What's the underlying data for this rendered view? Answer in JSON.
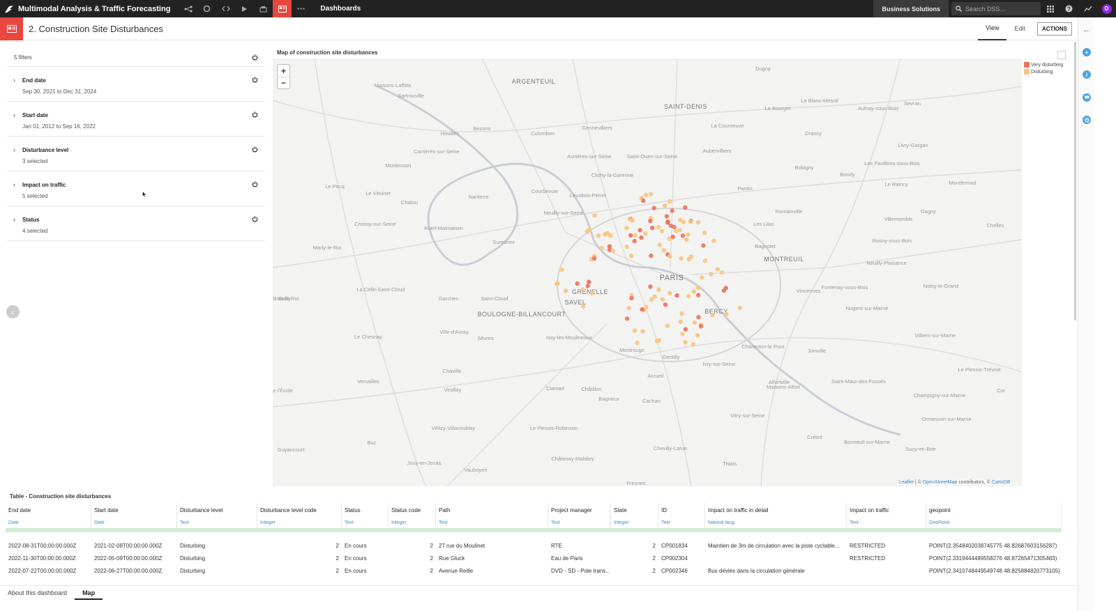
{
  "topbar": {
    "project": "Multimodal Analysis & Traffic Forecasting",
    "crumb": "Dashboards",
    "business": "Business Solutions",
    "search_placeholder": "Search DSS...",
    "avatar": "D"
  },
  "header": {
    "title": "2. Construction Site Disturbances",
    "tabs": [
      "View",
      "Edit"
    ],
    "actions": "ACTIONS"
  },
  "filters": {
    "count": "5 filters",
    "items": [
      {
        "name": "End date",
        "value": "Sep 30, 2021 to Dec 31, 2024"
      },
      {
        "name": "Start date",
        "value": "Jan 01, 2012 to Sep 16, 2022"
      },
      {
        "name": "Disturbance level",
        "value": "3 selected"
      },
      {
        "name": "Impact on traffic",
        "value": "5 selected"
      },
      {
        "name": "Status",
        "value": "4 selected"
      }
    ]
  },
  "map": {
    "title": "Map of construction site disturbances",
    "legend": [
      {
        "label": "Very disturbing",
        "color": "#e8735f"
      },
      {
        "label": "Disturbing",
        "color": "#f7c57f"
      }
    ],
    "attribution": {
      "leaflet": "Leaflet",
      "osm": "OpenStreetMap",
      "contrib": " contributors, © ",
      "carto": "CartoDB",
      "sep": " | © "
    },
    "labels": [
      "Dugny",
      "ARGENTEUIL",
      "Maisons-Laffitte",
      "Sartrouville",
      "SAINT-DENIS",
      "Le Bourget",
      "Le Blanc-Mesnil",
      "Aulnay-sous-Bois",
      "Sevran",
      "La Courneuve",
      "Drancy",
      "Gennevilliers",
      "Houilles",
      "Bezons",
      "Colombes",
      "Carrières-sur-Seine",
      "Asnières-sur-Seine",
      "Saint-Ouen-sur-Seine",
      "Aubervilliers",
      "Bobigny",
      "Livry-Gargan",
      "Les Pavillons-sous-Bois",
      "Bondy",
      "Montesson",
      "Clichy-la-Garenne",
      "Pantin",
      "Le Raincy",
      "Montfermeil",
      "Le Pecq",
      "Le Vésinet",
      "Chatou",
      "Nanterre",
      "Courbevoie",
      "Levallois-Perret",
      "Neuilly-sur-Seine",
      "Romainville",
      "Villemomble",
      "Gagny",
      "Les Lilas",
      "Chelles",
      "Croissy-sur-Seine",
      "Rueil-Malmaison",
      "Suresnes",
      "Bagnolet",
      "Rosny-sous-Bois",
      "Marly-le-Roi",
      "MONTREUIL",
      "Neuilly-Plaisance",
      "PARIS",
      "La Celle-Saint-Cloud",
      "Fontenay-sous-Bois",
      "Noisy-le-Grand",
      "Vincennes",
      "Bailly",
      "Garches",
      "Saint-Cloud",
      "BOULOGNE-BILLANCOURT",
      "Nogent-sur-Marne",
      "Le Chesnay",
      "Ville-d'Avray",
      "Sèvres",
      "Issy-les-Moulineaux",
      "Charenton-le-Pont",
      "Joinville",
      "Villiers-sur-Marne",
      "Montrouge",
      "Gentilly",
      "Ivry-sur-Seine",
      "Le Plessis-Trévise",
      "Versailles",
      "Chaville",
      "Arcueil",
      "Alfortville",
      "Maisons-Alfort",
      "Saint-Maur-des-Fossés",
      "Viroflay",
      "Clamart",
      "Châtillon",
      "Bagneux",
      "Cachan",
      "Champigny-sur-Marne",
      "Vitry-sur-Seine",
      "Ormesson-sur-Marne",
      "Vélizy-Villacoublay",
      "Le Plessis-Robinson",
      "Créteil",
      "Bonneuil-sur-Marne",
      "Sucy-en-Brie",
      "Guyancourt",
      "Châtenay-Malabry",
      "Chevilly-Larue",
      "Thiais",
      "Jouy-en-Josas",
      "Vauboyen",
      "Fresnes",
      "Buc",
      "GRENELLE",
      "SAVEL",
      "BERCY",
      "Saint-Cyr-l'École",
      "Bois-le-Roi",
      "Cor"
    ]
  },
  "table": {
    "title": "Table - Construction site disturbances",
    "columns": [
      {
        "name": "End date",
        "type": "Date"
      },
      {
        "name": "Start date",
        "type": "Date"
      },
      {
        "name": "Disturbance level",
        "type": "Text"
      },
      {
        "name": "Disturbance level code",
        "type": "Integer"
      },
      {
        "name": "Status",
        "type": "Text"
      },
      {
        "name": "Status code",
        "type": "Integer"
      },
      {
        "name": "Path",
        "type": "Text"
      },
      {
        "name": "Project manager",
        "type": "Text"
      },
      {
        "name": "State",
        "type": "Integer"
      },
      {
        "name": "ID",
        "type": "Text"
      },
      {
        "name": "Impact on traffic in detail",
        "type": "Natural lang."
      },
      {
        "name": "Impact on traffic",
        "type": "Text"
      },
      {
        "name": "geopoint",
        "type": "GeoPoint"
      }
    ],
    "rows": [
      [
        "2022-08-31T00:00:00.000Z",
        "2021-02-08T00:00:00.000Z",
        "Disturbing",
        "2",
        "En cours",
        "2",
        "27 rue du Moulinet",
        "RTE",
        "2",
        "CP001834",
        "Maintien de 3m de circulation avec la piste cyclable...",
        "RESTRICTED",
        "POINT(2.3548402038745775 48.82687603156287)"
      ],
      [
        "2022-11-30T00:00:00.000Z",
        "2022-05-09T00:00:00.000Z",
        "Disturbing",
        "2",
        "En cours",
        "2",
        "Rue Gluck",
        "Eau de Paris",
        "2",
        "CP002304",
        "",
        "RESTRICTED",
        "POINT(2.3319444489558276 48.87265471305483)"
      ],
      [
        "2022-07-22T00:00:00.000Z",
        "2022-06-27T00:00:00.000Z",
        "Disturbing",
        "2",
        "En cours",
        "2",
        "Avenue Reille",
        "DVD - SD - Pole trans...",
        "2",
        "CP002346",
        "Bus déviés dans la circulation générale",
        "",
        "POINT(2.3410748449549748 48.825884820773105)"
      ]
    ]
  },
  "bottom_tabs": [
    "About this dashboard",
    "Map"
  ]
}
